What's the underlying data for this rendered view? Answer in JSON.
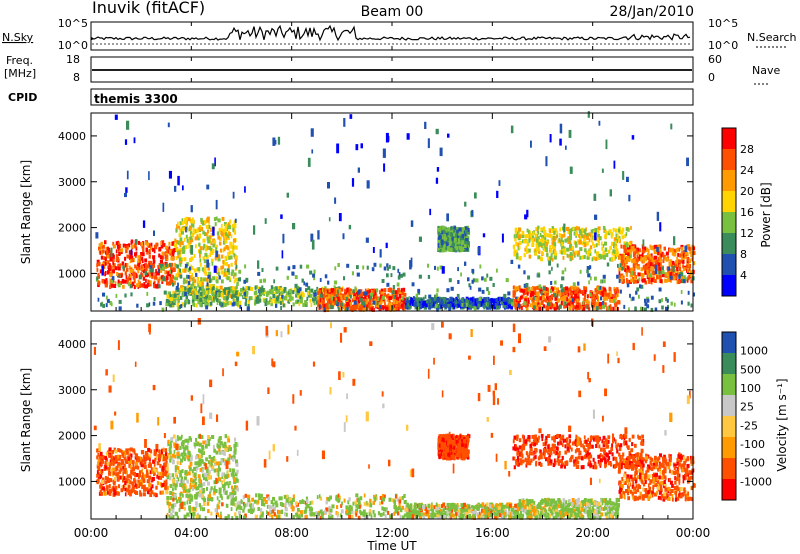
{
  "header": {
    "station": "Inuvik (fitACF)",
    "beam": "Beam 00",
    "date": "28/Jan/2010"
  },
  "panels": {
    "nsky": {
      "label": "N.Sky",
      "ticks": [
        "10^5",
        "10^0"
      ],
      "right_label": "N.Search",
      "right_ticks": [
        "10^5",
        "10^0"
      ]
    },
    "freq": {
      "label_line1": "Freq.",
      "label_line2": "[MHz]",
      "ticks": [
        "18",
        "8"
      ],
      "right_label": "Nave",
      "right_ticks": [
        "60",
        "0"
      ]
    },
    "cpid": {
      "label": "CPID",
      "value": "themis 3300"
    }
  },
  "chart_data": [
    {
      "type": "heatmap",
      "name": "power",
      "ylabel": "Slant Range [km]",
      "xlabel": "Time UT",
      "x_ticks": [
        "00:00",
        "04:00",
        "08:00",
        "12:00",
        "16:00",
        "20:00",
        "00:00"
      ],
      "xlim": [
        0,
        24
      ],
      "ylim": [
        180,
        4500
      ],
      "y_ticks": [
        1000,
        2000,
        3000,
        4000
      ],
      "colorbar": {
        "label": "Power [dB]",
        "ticks": [
          "28",
          "24",
          "20",
          "16",
          "12",
          "8",
          "4"
        ],
        "range": [
          0,
          32
        ]
      },
      "colors": [
        "#0000ff",
        "#2050b0",
        "#3a8c5a",
        "#7ac040",
        "#ffd400",
        "#ff9a00",
        "#ff5000",
        "#ff0000"
      ],
      "regions": [
        {
          "t": [
            0.2,
            3.3
          ],
          "r": [
            700,
            1700
          ],
          "value": 27
        },
        {
          "t": [
            3.3,
            5.8
          ],
          "r": [
            400,
            2200
          ],
          "value": 18
        },
        {
          "t": [
            3.0,
            10.0
          ],
          "r": [
            300,
            700
          ],
          "value": 14
        },
        {
          "t": [
            9.0,
            12.5
          ],
          "r": [
            200,
            650
          ],
          "value": 26
        },
        {
          "t": [
            12.5,
            17.0
          ],
          "r": [
            250,
            450
          ],
          "value": 6
        },
        {
          "t": [
            16.8,
            21.0
          ],
          "r": [
            220,
            700
          ],
          "value": 26
        },
        {
          "t": [
            16.8,
            21.5
          ],
          "r": [
            1300,
            2000
          ],
          "value": 17
        },
        {
          "t": [
            13.8,
            15.0
          ],
          "r": [
            1500,
            2000
          ],
          "value": 11
        },
        {
          "t": [
            21.0,
            24.0
          ],
          "r": [
            800,
            1600
          ],
          "value": 25
        },
        {
          "t": [
            0.0,
            24.0
          ],
          "r": [
            200,
            1200
          ],
          "value": 10
        },
        {
          "t": [
            0.0,
            24.0
          ],
          "r": [
            1000,
            4500
          ],
          "value": 6
        }
      ]
    },
    {
      "type": "heatmap",
      "name": "velocity",
      "ylabel": "Slant Range [km]",
      "xlabel": "Time UT",
      "x_ticks": [
        "00:00",
        "04:00",
        "08:00",
        "12:00",
        "16:00",
        "20:00",
        "00:00"
      ],
      "xlim": [
        0,
        24
      ],
      "ylim": [
        180,
        4500
      ],
      "y_ticks": [
        1000,
        2000,
        3000,
        4000
      ],
      "colorbar": {
        "label": "Velocity [m s⁻¹]",
        "ticks": [
          "1000",
          "500",
          "100",
          "25",
          "-25",
          "-100",
          "-500",
          "-1000"
        ]
      },
      "colors": [
        "#ff0000",
        "#ff5000",
        "#ff9a00",
        "#ffc840",
        "#c8c8c8",
        "#7ac040",
        "#3a8c5a",
        "#2050b0"
      ],
      "regions": [
        {
          "t": [
            0.2,
            3.0
          ],
          "r": [
            700,
            1700
          ],
          "value": -300
        },
        {
          "t": [
            3.0,
            5.8
          ],
          "r": [
            600,
            2000
          ],
          "value": 200
        },
        {
          "t": [
            3.0,
            12.5
          ],
          "r": [
            200,
            700
          ],
          "value": 150
        },
        {
          "t": [
            12.5,
            17.0
          ],
          "r": [
            200,
            500
          ],
          "value": 150
        },
        {
          "t": [
            13.8,
            15.0
          ],
          "r": [
            1500,
            2000
          ],
          "value": -400
        },
        {
          "t": [
            16.8,
            22.0
          ],
          "r": [
            1300,
            2000
          ],
          "value": -400
        },
        {
          "t": [
            17.0,
            21.0
          ],
          "r": [
            200,
            600
          ],
          "value": 200
        },
        {
          "t": [
            21.0,
            24.0
          ],
          "r": [
            600,
            1600
          ],
          "value": -300
        },
        {
          "t": [
            0.0,
            24.0
          ],
          "r": [
            1000,
            4500
          ],
          "value": -200
        }
      ]
    }
  ]
}
